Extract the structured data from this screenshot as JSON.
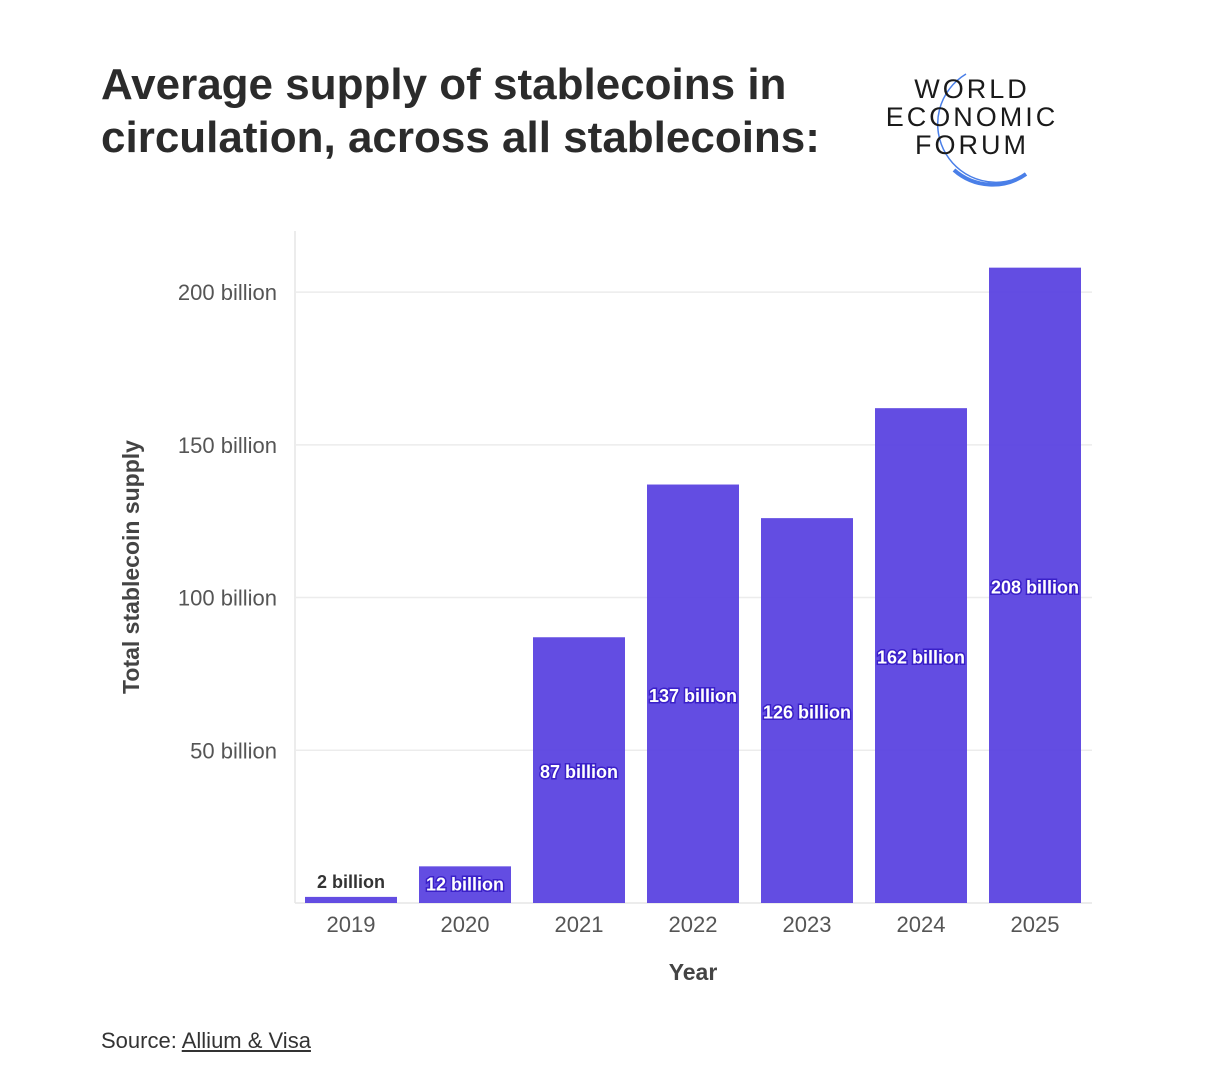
{
  "title": "Average supply of stablecoins in circulation, across all stablecoins:",
  "logo": {
    "lines": [
      "WORLD",
      "ECONOMIC",
      "FORUM"
    ],
    "arc_color": "#4a7fe8"
  },
  "source": {
    "label": "Source:",
    "link": "Allium & Visa"
  },
  "chart_data": {
    "type": "bar",
    "xlabel": "Year",
    "ylabel": "Total stablecoin supply",
    "categories": [
      "2019",
      "2020",
      "2021",
      "2022",
      "2023",
      "2024",
      "2025"
    ],
    "values": [
      2,
      12,
      87,
      137,
      126,
      162,
      208
    ],
    "value_unit": "billion",
    "data_labels": [
      "2 billion",
      "12 billion",
      "87 billion",
      "137 billion",
      "126 billion",
      "162 billion",
      "208 billion"
    ],
    "yticks": [
      50,
      100,
      150,
      200
    ],
    "ytick_labels": [
      "50 billion",
      "100 billion",
      "150 billion",
      "200 billion"
    ],
    "ylim": [
      0,
      220
    ],
    "grid": true,
    "bar_color": "#5b43e0"
  }
}
